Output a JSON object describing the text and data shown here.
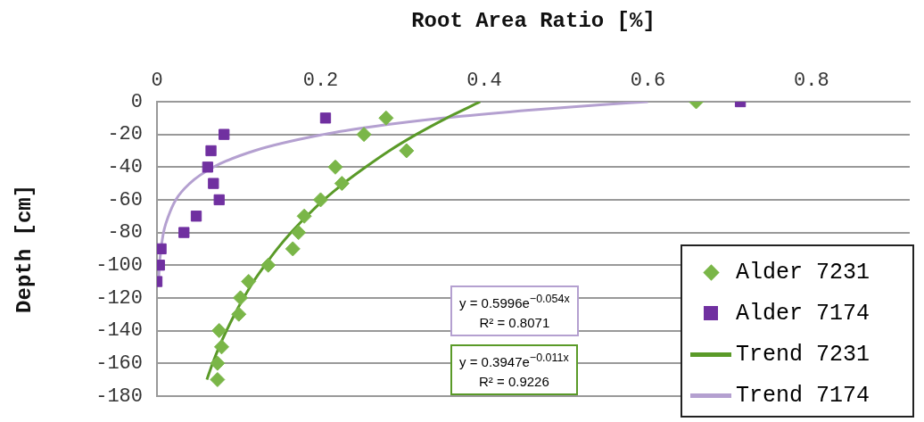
{
  "chart_data": {
    "type": "scatter",
    "xlabel": "Root Area Ratio [%]",
    "ylabel": "Depth [cm]",
    "xlim": [
      0,
      0.92
    ],
    "xticks": [
      0,
      0.2,
      0.4,
      0.6,
      0.8
    ],
    "ylim": [
      -180,
      0
    ],
    "yticks": [
      0,
      -20,
      -40,
      -60,
      -80,
      -100,
      -120,
      -140,
      -160,
      -180
    ],
    "grid": "y",
    "legend": "bottom right",
    "series": [
      {
        "name": "Alder 7231",
        "type": "scatter",
        "marker": "diamond",
        "color": "#7ab648",
        "x": [
          0.659,
          0.28,
          0.253,
          0.305,
          0.218,
          0.226,
          0.2,
          0.18,
          0.173,
          0.166,
          0.136,
          0.112,
          0.102,
          0.1,
          0.076,
          0.079,
          0.074,
          0.074
        ],
        "values": [
          0,
          -10,
          -20,
          -30,
          -40,
          -50,
          -60,
          -70,
          -80,
          -90,
          -100,
          -110,
          -120,
          -130,
          -140,
          -150,
          -160,
          -170
        ]
      },
      {
        "name": "Alder 7174",
        "type": "scatter",
        "marker": "square",
        "color": "#7030a0",
        "x": [
          0.713,
          0.206,
          0.082,
          0.066,
          0.062,
          0.069,
          0.076,
          0.048,
          0.033,
          0.005,
          0.003,
          0.0
        ],
        "values": [
          0,
          -10,
          -20,
          -30,
          -40,
          -50,
          -60,
          -70,
          -80,
          -90,
          -100,
          -110
        ]
      },
      {
        "name": "Trend 7231",
        "type": "line",
        "marker": "none",
        "color": "#5a9a28",
        "x": [
          0.395,
          0.354,
          0.317,
          0.284,
          0.255,
          0.228,
          0.204,
          0.183,
          0.164,
          0.147,
          0.132,
          0.118,
          0.106,
          0.095,
          0.085,
          0.076,
          0.068,
          0.061
        ],
        "values": [
          0,
          -10,
          -20,
          -30,
          -40,
          -50,
          -60,
          -70,
          -80,
          -90,
          -100,
          -110,
          -120,
          -130,
          -140,
          -150,
          -160,
          -170
        ]
      },
      {
        "name": "Trend 7174",
        "type": "line",
        "marker": "none",
        "color": "#b4a0d0",
        "x": [
          0.6,
          0.538,
          0.458,
          0.35,
          0.267,
          0.204,
          0.119,
          0.069,
          0.04,
          0.023,
          0.014,
          0.008,
          0.005,
          0.003,
          0.002
        ],
        "values": [
          0,
          -2,
          -5,
          -10,
          -15,
          -20,
          -30,
          -40,
          -50,
          -60,
          -70,
          -80,
          -90,
          -100,
          -110
        ]
      }
    ],
    "annotations": [
      "y = 0.5996e$^{−0.054x}$\nR² = 0.8071",
      "y = 0.3947e$^{−0.011x}$\nR² = 0.9226"
    ]
  }
}
